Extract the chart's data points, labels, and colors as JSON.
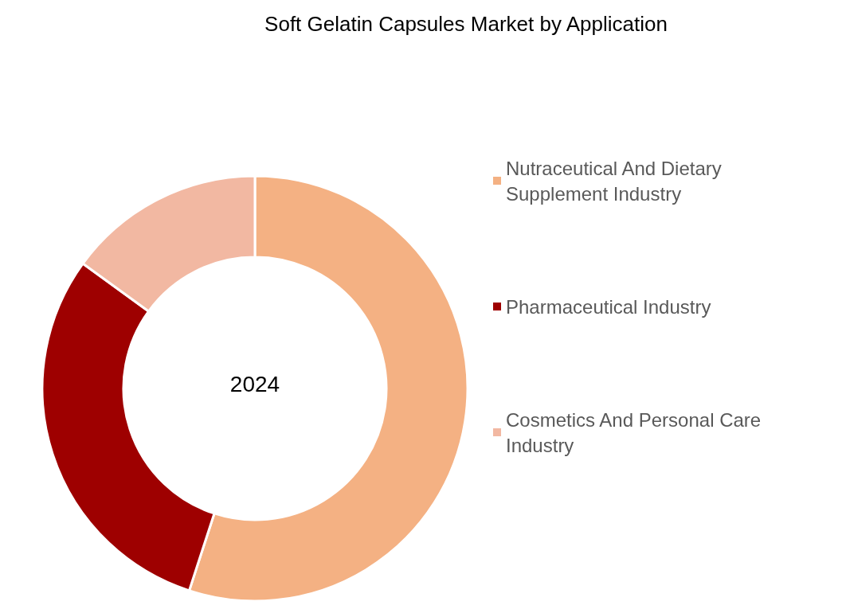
{
  "chart_data": {
    "type": "donut",
    "title": "Soft Gelatin Capsules Market by Application",
    "categories": [
      "Nutraceutical And Dietary Supplement Industry",
      "Pharmaceutical Industry",
      "Cosmetics And Personal Care Industry"
    ],
    "values": [
      55,
      30,
      15
    ],
    "colors": [
      "#f4b183",
      "#9e0000",
      "#f2b8a2"
    ],
    "annotations": [
      "2024"
    ],
    "legend": "right"
  }
}
